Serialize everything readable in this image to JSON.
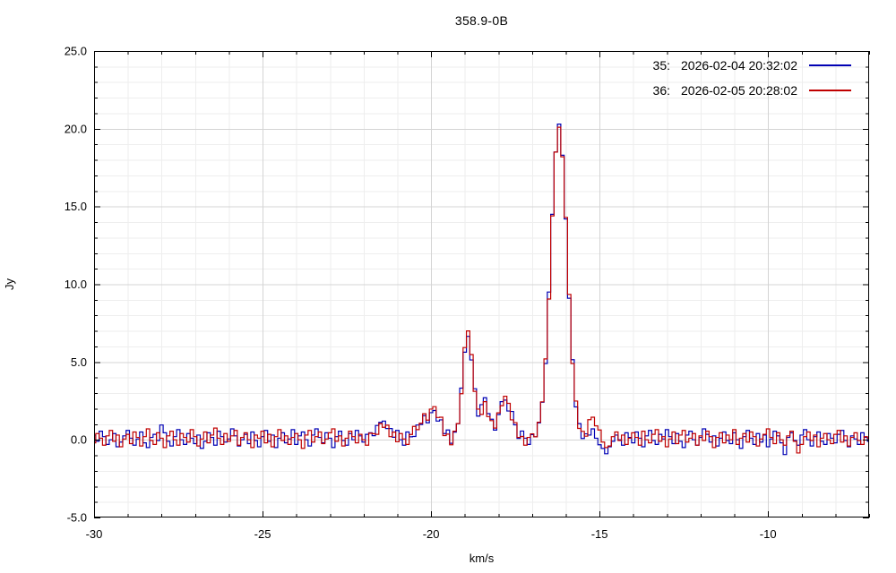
{
  "title": "358.9-0B",
  "axes": {
    "xlabel": "km/s",
    "ylabel": "Jy",
    "x_major_ticks": [
      {
        "v": -30,
        "label": "-30"
      },
      {
        "v": -25,
        "label": "-25"
      },
      {
        "v": -20,
        "label": "-20"
      },
      {
        "v": -15,
        "label": "-15"
      },
      {
        "v": -10,
        "label": "-10"
      }
    ],
    "x_minor_step": 1,
    "y_major_ticks": [
      {
        "v": 25,
        "label": "25.0"
      },
      {
        "v": 20,
        "label": "20.0"
      },
      {
        "v": 15,
        "label": "15.0"
      },
      {
        "v": 10,
        "label": "10.0"
      },
      {
        "v": 5,
        "label": "5.0"
      },
      {
        "v": 0,
        "label": "0.0"
      },
      {
        "v": -5,
        "label": "-5.0"
      }
    ],
    "y_minor_step": 1
  },
  "legend": {
    "entries": [
      {
        "id": "35:",
        "timestamp": "2026-02-04 20:32:02",
        "color": "#0000b4"
      },
      {
        "id": "36:",
        "timestamp": "2026-02-05 20:28:02",
        "color": "#c00000"
      }
    ]
  },
  "colors": {
    "series_blue": "#0000b4",
    "series_red": "#c00000",
    "grid_minor": "#eeeeee",
    "grid_major": "#d4d4d4",
    "border": "#000000"
  },
  "chart_data": {
    "type": "line",
    "style": "histeps",
    "title": "358.9-0B",
    "xlabel": "km/s",
    "ylabel": "Jy",
    "xlim": [
      -30,
      -7
    ],
    "ylim": [
      -5,
      25
    ],
    "grid": true,
    "legend_position": "top-right",
    "x_start": -30.0,
    "x_step": 0.1,
    "series": [
      {
        "name": "35: 2026-02-04 20:32:02",
        "color": "#0000b4",
        "values": [
          0.3,
          -0.1,
          0.55,
          0.2,
          -0.3,
          0.0,
          0.4,
          -0.45,
          -0.15,
          0.25,
          0.6,
          0.1,
          -0.35,
          0.05,
          0.5,
          -0.2,
          -0.5,
          0.15,
          0.35,
          -0.05,
          0.95,
          0.45,
          -0.1,
          -0.4,
          0.2,
          0.65,
          0.0,
          -0.3,
          0.4,
          0.1,
          -0.25,
          0.3,
          -0.55,
          -0.1,
          0.45,
          0.15,
          -0.35,
          0.55,
          0.2,
          -0.15,
          0.05,
          0.7,
          0.25,
          -0.4,
          0.0,
          0.35,
          -0.25,
          0.5,
          -0.05,
          -0.45,
          0.2,
          0.6,
          -0.1,
          0.3,
          -0.5,
          0.1,
          0.45,
          -0.2,
          0.05,
          0.65,
          -0.3,
          0.25,
          0.5,
          0.0,
          -0.4,
          0.3,
          0.7,
          0.15,
          -0.2,
          0.45,
          0.1,
          -0.5,
          0.2,
          0.55,
          -0.05,
          -0.35,
          0.4,
          0.0,
          0.6,
          0.25,
          -0.15,
          0.35,
          0.45,
          0.26,
          0.92,
          1.12,
          1.2,
          0.72,
          0.72,
          0.16,
          0.6,
          0.0,
          -0.35,
          0.5,
          0.19,
          0.21,
          0.95,
          0.98,
          1.55,
          1.09,
          1.74,
          1.88,
          1.2,
          1.28,
          0.4,
          0.63,
          -0.23,
          0.49,
          1.04,
          3.32,
          5.63,
          6.65,
          5.13,
          3.28,
          1.52,
          2.26,
          2.7,
          1.68,
          1.32,
          0.62,
          1.62,
          2.45,
          2.55,
          1.85,
          1.82,
          0.96,
          0.09,
          0.56,
          0.1,
          -0.3,
          0.33,
          0.19,
          1.09,
          2.41,
          4.9,
          9.5,
          14.5,
          18.5,
          20.3,
          18.3,
          14.2,
          9.1,
          5.15,
          2.11,
          1.04,
          0.08,
          0.38,
          0.3,
          0.7,
          0.1,
          -0.32,
          -0.56,
          -0.9,
          -0.45,
          -0.1,
          0.3,
          0.0,
          -0.35,
          0.45,
          0.15,
          -0.2,
          0.5,
          0.1,
          -0.45,
          0.25,
          0.6,
          -0.05,
          -0.3,
          0.35,
          0.05,
          0.65,
          0.2,
          -0.25,
          0.4,
          -0.1,
          -0.5,
          0.3,
          0.55,
          0.0,
          -0.35,
          0.15,
          0.7,
          0.35,
          -0.15,
          0.25,
          -0.4,
          0.1,
          0.5,
          -0.05,
          -0.25,
          0.45,
          0.0,
          -0.55,
          0.2,
          0.6,
          0.1,
          -0.3,
          0.4,
          -0.15,
          0.3,
          -0.45,
          0.05,
          0.55,
          0.25,
          -0.2,
          -0.95,
          0.15,
          0.45,
          -0.05,
          -0.35,
          0.3,
          0.65,
          0.0,
          -0.4,
          0.2,
          0.5,
          -0.1,
          -0.3,
          0.4,
          0.1,
          -0.2,
          0.35,
          0.6,
          -0.05,
          -0.45,
          0.25,
          0.05,
          -0.3,
          0.45,
          0.15,
          -0.1
        ]
      },
      {
        "name": "36: 2026-02-05 20:28:02",
        "color": "#c00000",
        "values": [
          -0.2,
          0.4,
          0.1,
          -0.35,
          0.25,
          0.6,
          -0.1,
          0.3,
          -0.45,
          0.05,
          0.35,
          -0.25,
          0.5,
          0.15,
          -0.4,
          0.2,
          0.7,
          -0.05,
          -0.3,
          0.45,
          0.1,
          -0.5,
          0.25,
          0.55,
          0.0,
          -0.35,
          0.4,
          0.15,
          -0.15,
          0.65,
          0.2,
          -0.4,
          0.05,
          0.5,
          -0.2,
          0.3,
          0.75,
          0.1,
          -0.3,
          0.4,
          -0.1,
          0.25,
          0.6,
          -0.35,
          0.15,
          0.45,
          0.0,
          -0.5,
          0.3,
          0.1,
          0.55,
          -0.2,
          0.35,
          -0.45,
          0.2,
          0.65,
          -0.05,
          0.25,
          -0.3,
          0.15,
          0.4,
          0.0,
          -0.55,
          0.3,
          0.6,
          -0.15,
          0.2,
          0.5,
          -0.25,
          0.05,
          0.45,
          0.7,
          -0.1,
          0.25,
          -0.4,
          0.1,
          0.55,
          0.2,
          -0.2,
          0.35,
          0.0,
          -0.35,
          0.42,
          0.39,
          0.35,
          1.04,
          0.8,
          0.94,
          0.2,
          0.49,
          -0.13,
          0.4,
          0.05,
          -0.3,
          0.34,
          0.86,
          0.65,
          1.06,
          1.67,
          1.26,
          1.97,
          2.13,
          1.43,
          1.45,
          0.27,
          0.36,
          -0.32,
          0.55,
          1.04,
          2.96,
          5.93,
          7.0,
          5.48,
          3.11,
          1.97,
          1.63,
          2.45,
          1.49,
          1.23,
          0.75,
          1.73,
          2.19,
          2.8,
          2.34,
          1.28,
          1.1,
          0.15,
          0.21,
          -0.35,
          0.15,
          0.38,
          0.19,
          1.13,
          2.44,
          5.2,
          9.05,
          14.4,
          18.5,
          20.1,
          18.2,
          14.3,
          9.35,
          4.9,
          2.49,
          0.73,
          0.54,
          0.23,
          1.29,
          1.45,
          0.89,
          0.63,
          -0.15,
          -0.5,
          -0.4,
          0.2,
          0.5,
          -0.05,
          0.3,
          -0.3,
          0.1,
          0.45,
          0.15,
          -0.35,
          0.55,
          0.0,
          -0.2,
          0.35,
          0.65,
          -0.1,
          0.2,
          -0.45,
          0.05,
          0.5,
          -0.25,
          0.3,
          0.6,
          -0.15,
          0.1,
          0.4,
          -0.35,
          0.25,
          -0.05,
          0.55,
          0.2,
          -0.5,
          0.15,
          0.45,
          -0.2,
          0.3,
          0.0,
          0.65,
          -0.3,
          0.1,
          0.4,
          -0.15,
          0.5,
          0.2,
          -0.4,
          0.05,
          0.35,
          0.7,
          0.15,
          -0.25,
          0.45,
          0.0,
          -0.35,
          0.25,
          0.55,
          -0.1,
          -0.85,
          -0.3,
          0.2,
          0.5,
          -0.05,
          0.3,
          -0.45,
          0.1,
          0.4,
          0.0,
          -0.25,
          0.35,
          0.6,
          -0.15,
          0.25,
          -0.4,
          0.15,
          0.45,
          -0.05,
          -0.3,
          0.2,
          0.1
        ]
      }
    ]
  }
}
